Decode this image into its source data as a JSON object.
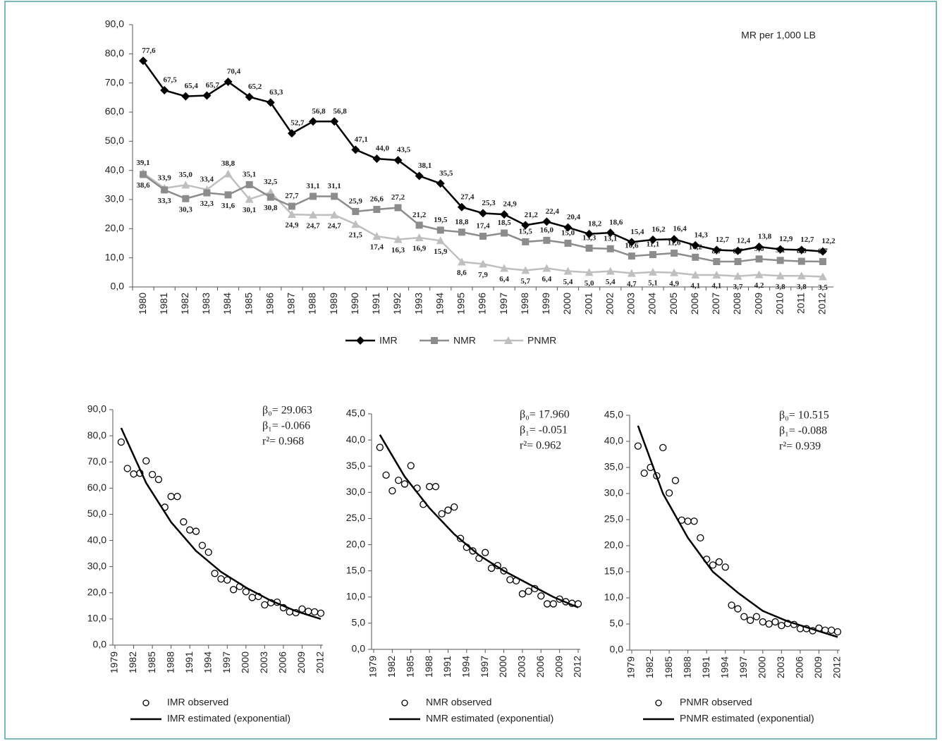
{
  "chart_data": [
    {
      "type": "line",
      "annotation": "MR per 1,000 LB",
      "categories": [
        "1980",
        "1981",
        "1982",
        "1983",
        "1984",
        "1985",
        "1986",
        "1987",
        "1988",
        "1989",
        "1990",
        "1991",
        "1992",
        "1993",
        "1994",
        "1995",
        "1996",
        "1997",
        "1998",
        "1999",
        "2000",
        "2001",
        "2002",
        "2003",
        "2004",
        "2005",
        "2006",
        "2007",
        "2008",
        "2009",
        "2010",
        "2011",
        "2012"
      ],
      "ylim": [
        0,
        90
      ],
      "yticks": [
        {
          "value": 0,
          "label": "0,0"
        },
        {
          "value": 10,
          "label": "10,0"
        },
        {
          "value": 20,
          "label": "20,0"
        },
        {
          "value": 30,
          "label": "30,0"
        },
        {
          "value": 40,
          "label": "40,0"
        },
        {
          "value": 50,
          "label": "50,0"
        },
        {
          "value": 60,
          "label": "60,0"
        },
        {
          "value": 70,
          "label": "70,0"
        },
        {
          "value": 80,
          "label": "80,0"
        },
        {
          "value": 90,
          "label": "90,0"
        }
      ],
      "series": [
        {
          "name": "IMR",
          "color": "#000000",
          "marker": "diamond",
          "values": [
            77.6,
            67.5,
            65.4,
            65.7,
            70.4,
            65.2,
            63.3,
            52.7,
            56.8,
            56.8,
            47.1,
            44.0,
            43.5,
            38.1,
            35.5,
            27.4,
            25.3,
            24.9,
            21.2,
            22.4,
            20.4,
            18.2,
            18.6,
            15.4,
            16.2,
            16.4,
            14.3,
            12.7,
            12.4,
            13.8,
            12.9,
            12.7,
            12.2
          ],
          "value_labels": [
            "77,6",
            "67,5",
            "65,4",
            "65,7",
            "70,4",
            "65,2",
            "63,3",
            "52,7",
            "56,8",
            "56,8",
            "47,1",
            "44,0",
            "43,5",
            "38,1",
            "35,5",
            "27,4",
            "25,3",
            "24,9",
            "21,2",
            "22,4",
            "20,4",
            "18,2",
            "18,6",
            "15,4",
            "16,2",
            "16,4",
            "14,3",
            "12,7",
            "12,4",
            "13,8",
            "12,9",
            "12,7",
            "12,2"
          ]
        },
        {
          "name": "NMR",
          "color": "#8c8c8c",
          "marker": "square",
          "values": [
            38.6,
            33.3,
            30.3,
            32.3,
            31.6,
            35.1,
            30.8,
            27.7,
            31.1,
            31.1,
            25.9,
            26.6,
            27.2,
            21.2,
            19.5,
            18.8,
            17.4,
            18.5,
            15.5,
            16.0,
            15.0,
            13.3,
            13.1,
            10.6,
            11.1,
            11.6,
            10.2,
            8.7,
            8.7,
            9.6,
            9.1,
            8.8,
            8.7
          ],
          "value_labels": [
            "38,6",
            "33,3",
            "30,3",
            "32,3",
            "31,6",
            "35,1",
            "30,8",
            "27,7",
            "31,1",
            "31,1",
            "25,9",
            "26,6",
            "27,2",
            "21,2",
            "19,5",
            "18,8",
            "17,4",
            "18,5",
            "15,5",
            "16,0",
            "15,0",
            "13,3",
            "13,1",
            "10,6",
            "11,1",
            "11,6",
            "10,2",
            "8,7",
            "8,7",
            "9,6",
            "9,1",
            "8,8",
            "8,7"
          ]
        },
        {
          "name": "PNMR",
          "color": "#bfbfbf",
          "marker": "triangle",
          "values": [
            39.1,
            33.9,
            35.0,
            33.4,
            38.8,
            30.1,
            32.5,
            24.9,
            24.7,
            24.7,
            21.5,
            17.4,
            16.3,
            16.9,
            15.9,
            8.6,
            7.9,
            6.4,
            5.7,
            6.4,
            5.4,
            5.0,
            5.4,
            4.7,
            5.1,
            4.9,
            4.1,
            4.1,
            3.7,
            4.2,
            3.8,
            3.8,
            3.5
          ],
          "value_labels": [
            "39,1",
            "33,9",
            "35,0",
            "33,4",
            "38,8",
            "30,1",
            "32,5",
            "24,9",
            "24,7",
            "24,7",
            "21,5",
            "17,4",
            "16,3",
            "16,9",
            "15,9",
            "8,6",
            "7,9",
            "6,4",
            "5,7",
            "6,4",
            "5,4",
            "5,0",
            "5,4",
            "4,7",
            "5,1",
            "4,9",
            "4,1",
            "4,1",
            "3,7",
            "4,2",
            "3,8",
            "3,8",
            "3,5"
          ]
        }
      ]
    },
    {
      "type": "scatter",
      "annotations": [
        "β₀= 29.063",
        "β₁= -0.066",
        "r²= 0.968"
      ],
      "xlim": [
        1979,
        2012
      ],
      "xticks": [
        1979,
        1982,
        1985,
        1988,
        1991,
        1994,
        1997,
        2000,
        2003,
        2006,
        2009,
        2012
      ],
      "ylim": [
        0,
        90
      ],
      "yticks": [
        {
          "value": 0,
          "label": "0,0"
        },
        {
          "value": 10,
          "label": "10,0"
        },
        {
          "value": 20,
          "label": "20,0"
        },
        {
          "value": 30,
          "label": "30,0"
        },
        {
          "value": 40,
          "label": "40,0"
        },
        {
          "value": 50,
          "label": "50,0"
        },
        {
          "value": 60,
          "label": "60,0"
        },
        {
          "value": 70,
          "label": "70,0"
        },
        {
          "value": 80,
          "label": "80,0"
        },
        {
          "value": 90,
          "label": "90,0"
        }
      ],
      "series": [
        {
          "name": "IMR observed",
          "color": "#000000",
          "style": "markers",
          "x": [
            1980,
            1981,
            1982,
            1983,
            1984,
            1985,
            1986,
            1987,
            1988,
            1989,
            1990,
            1991,
            1992,
            1993,
            1994,
            1995,
            1996,
            1997,
            1998,
            1999,
            2000,
            2001,
            2002,
            2003,
            2004,
            2005,
            2006,
            2007,
            2008,
            2009,
            2010,
            2011,
            2012
          ],
          "values": [
            77.6,
            67.5,
            65.4,
            65.7,
            70.4,
            65.2,
            63.3,
            52.7,
            56.8,
            56.8,
            47.1,
            44.0,
            43.5,
            38.1,
            35.5,
            27.4,
            25.3,
            24.9,
            21.2,
            22.4,
            20.4,
            18.2,
            18.6,
            15.4,
            16.2,
            16.4,
            14.3,
            12.7,
            12.4,
            13.8,
            12.9,
            12.7,
            12.2
          ]
        },
        {
          "name": "IMR estimated (exponential)",
          "color": "#000000",
          "style": "line",
          "x": [
            1980,
            1984,
            1988,
            1992,
            1996,
            2000,
            2004,
            2008,
            2012
          ],
          "values": [
            83,
            62,
            47,
            36,
            28,
            22,
            17,
            13,
            10
          ]
        }
      ]
    },
    {
      "type": "scatter",
      "annotations": [
        "β₀= 17.960",
        "β₁= -0.051",
        "r²= 0.962"
      ],
      "xlim": [
        1979,
        2012
      ],
      "xticks": [
        1979,
        1982,
        1985,
        1988,
        1991,
        1994,
        1997,
        2000,
        2003,
        2006,
        2009,
        2012
      ],
      "ylim": [
        0,
        45
      ],
      "yticks": [
        {
          "value": 0,
          "label": "0,0"
        },
        {
          "value": 5,
          "label": "5,0"
        },
        {
          "value": 10,
          "label": "10,0"
        },
        {
          "value": 15,
          "label": "15,0"
        },
        {
          "value": 20,
          "label": "20,0"
        },
        {
          "value": 25,
          "label": "25,0"
        },
        {
          "value": 30,
          "label": "30,0"
        },
        {
          "value": 35,
          "label": "35,0"
        },
        {
          "value": 40,
          "label": "40,0"
        },
        {
          "value": 45,
          "label": "45,0"
        }
      ],
      "series": [
        {
          "name": "NMR observed",
          "color": "#000000",
          "style": "markers",
          "x": [
            1980,
            1981,
            1982,
            1983,
            1984,
            1985,
            1986,
            1987,
            1988,
            1989,
            1990,
            1991,
            1992,
            1993,
            1994,
            1995,
            1996,
            1997,
            1998,
            1999,
            2000,
            2001,
            2002,
            2003,
            2004,
            2005,
            2006,
            2007,
            2008,
            2009,
            2010,
            2011,
            2012
          ],
          "values": [
            38.6,
            33.3,
            30.3,
            32.3,
            31.6,
            35.1,
            30.8,
            27.7,
            31.1,
            31.1,
            25.9,
            26.6,
            27.2,
            21.2,
            19.5,
            18.8,
            17.4,
            18.5,
            15.5,
            16.0,
            15.0,
            13.3,
            13.1,
            10.6,
            11.1,
            11.6,
            10.2,
            8.7,
            8.7,
            9.6,
            9.1,
            8.8,
            8.7
          ]
        },
        {
          "name": "NMR estimated (exponential)",
          "color": "#000000",
          "style": "line",
          "x": [
            1980,
            1984,
            1988,
            1992,
            1996,
            2000,
            2004,
            2008,
            2012
          ],
          "values": [
            41,
            33,
            27,
            22,
            18,
            15,
            12.5,
            10,
            8
          ]
        }
      ]
    },
    {
      "type": "scatter",
      "annotations": [
        "β₀= 10.515",
        "β₁= -0.088",
        "r²= 0.939"
      ],
      "xlim": [
        1979,
        2012
      ],
      "xticks": [
        1979,
        1982,
        1985,
        1988,
        1991,
        1994,
        1997,
        2000,
        2003,
        2006,
        2009,
        2012
      ],
      "ylim": [
        0,
        45
      ],
      "yticks": [
        {
          "value": 0,
          "label": "0,0"
        },
        {
          "value": 5,
          "label": "5,0"
        },
        {
          "value": 10,
          "label": "10,0"
        },
        {
          "value": 15,
          "label": "15,0"
        },
        {
          "value": 20,
          "label": "20,0"
        },
        {
          "value": 25,
          "label": "25,0"
        },
        {
          "value": 30,
          "label": "30,0"
        },
        {
          "value": 35,
          "label": "35,0"
        },
        {
          "value": 40,
          "label": "40,0"
        },
        {
          "value": 45,
          "label": "45,0"
        }
      ],
      "series": [
        {
          "name": "PNMR observed",
          "color": "#000000",
          "style": "markers",
          "x": [
            1980,
            1981,
            1982,
            1983,
            1984,
            1985,
            1986,
            1987,
            1988,
            1989,
            1990,
            1991,
            1992,
            1993,
            1994,
            1995,
            1996,
            1997,
            1998,
            1999,
            2000,
            2001,
            2002,
            2003,
            2004,
            2005,
            2006,
            2007,
            2008,
            2009,
            2010,
            2011,
            2012
          ],
          "values": [
            39.1,
            33.9,
            35.0,
            33.4,
            38.8,
            30.1,
            32.5,
            24.9,
            24.7,
            24.7,
            21.5,
            17.4,
            16.3,
            16.9,
            15.9,
            8.6,
            7.9,
            6.4,
            5.7,
            6.4,
            5.4,
            5.0,
            5.4,
            4.7,
            5.1,
            4.9,
            4.1,
            4.1,
            3.7,
            4.2,
            3.8,
            3.8,
            3.5
          ]
        },
        {
          "name": "PNMR estimated (exponential)",
          "color": "#000000",
          "style": "line",
          "x": [
            1980,
            1984,
            1988,
            1992,
            1996,
            2000,
            2004,
            2008,
            2012
          ],
          "values": [
            43,
            30,
            21.5,
            15,
            11,
            7.5,
            5.5,
            4,
            2.5
          ]
        }
      ]
    }
  ]
}
